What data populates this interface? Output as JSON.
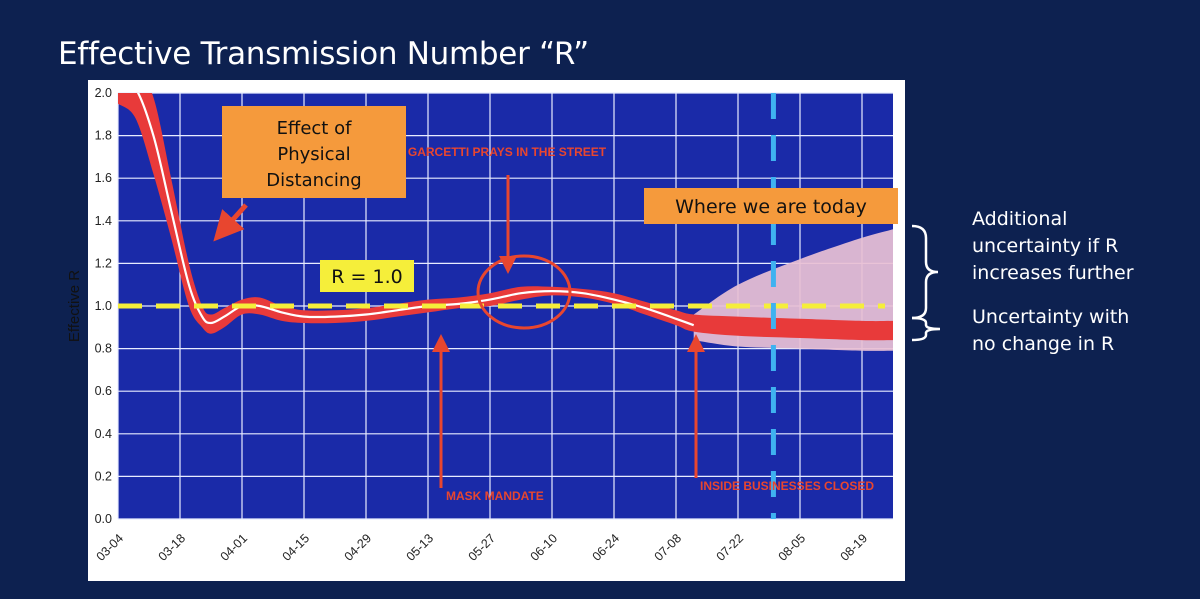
{
  "slide": {
    "title": "Effective Transmission Number “R”"
  },
  "colors": {
    "background": "#0d2150",
    "plot_background": "#1a2aa8",
    "grid": "#e8ecff",
    "band": "#e83a3a",
    "mean_line": "#ffffff",
    "reference_line": "#f5ee3a",
    "uncertainty_band": "#e8bfd4",
    "today_line": "#3fb2f0",
    "orange_box": "#f59a3c",
    "annotation_red": "#e8462f"
  },
  "chart_data": {
    "type": "line",
    "title": "",
    "xlabel": "",
    "ylabel": "Effective R",
    "x_ticks": [
      "03-04",
      "03-18",
      "04-01",
      "04-15",
      "04-29",
      "05-13",
      "05-27",
      "06-10",
      "06-24",
      "07-08",
      "07-22",
      "08-05",
      "08-19"
    ],
    "ylim": [
      0,
      2.0
    ],
    "y_ticks": [
      0.0,
      0.2,
      0.4,
      0.6,
      0.8,
      1.0,
      1.2,
      1.4,
      1.6,
      1.8,
      2.0
    ],
    "grid": true,
    "series": [
      {
        "kind": "mean",
        "x": [
          "03-04",
          "03-08",
          "03-12",
          "03-16",
          "03-20",
          "03-23",
          "03-25",
          "03-28",
          "04-01",
          "04-05",
          "04-10",
          "04-15",
          "04-22",
          "04-29",
          "05-06",
          "05-13",
          "05-20",
          "05-27",
          "06-03",
          "06-10",
          "06-17",
          "06-24",
          "07-01",
          "07-08",
          "07-12"
        ],
        "values": [
          2.05,
          2.02,
          1.8,
          1.45,
          1.1,
          0.95,
          0.92,
          0.95,
          1.0,
          1.0,
          0.97,
          0.95,
          0.95,
          0.96,
          0.98,
          1.0,
          1.01,
          1.03,
          1.06,
          1.07,
          1.06,
          1.03,
          0.99,
          0.94,
          0.91
        ]
      },
      {
        "kind": "confidence_band",
        "x": [
          "03-04",
          "03-08",
          "03-12",
          "03-16",
          "03-20",
          "03-23",
          "03-25",
          "03-28",
          "04-01",
          "04-05",
          "04-10",
          "04-15",
          "04-22",
          "04-29",
          "05-06",
          "05-13",
          "05-20",
          "05-27",
          "06-03",
          "06-10",
          "06-17",
          "06-24",
          "07-01",
          "07-08",
          "07-12",
          "07-22",
          "08-05",
          "08-19",
          "08-26"
        ],
        "upper": [
          2.15,
          2.12,
          1.98,
          1.6,
          1.2,
          1.0,
          0.96,
          0.99,
          1.03,
          1.04,
          1.0,
          0.98,
          0.98,
          0.99,
          1.01,
          1.03,
          1.04,
          1.06,
          1.09,
          1.09,
          1.08,
          1.06,
          1.02,
          0.98,
          0.96,
          0.95,
          0.94,
          0.93,
          0.93
        ],
        "lower": [
          1.95,
          1.88,
          1.62,
          1.32,
          1.0,
          0.9,
          0.87,
          0.9,
          0.96,
          0.96,
          0.93,
          0.92,
          0.92,
          0.93,
          0.95,
          0.97,
          0.99,
          1.0,
          1.03,
          1.05,
          1.04,
          1.01,
          0.96,
          0.91,
          0.88,
          0.86,
          0.85,
          0.84,
          0.84
        ]
      },
      {
        "kind": "additional_uncertainty",
        "x": [
          "07-12",
          "07-22",
          "08-05",
          "08-19",
          "08-26"
        ],
        "upper": [
          0.96,
          1.1,
          1.22,
          1.32,
          1.36
        ],
        "lower": [
          0.84,
          0.81,
          0.8,
          0.79,
          0.79
        ]
      }
    ],
    "reference_lines": [
      {
        "y": 1.0,
        "label": "R = 1.0"
      }
    ],
    "vertical_lines": [
      {
        "x": "07-30"
      }
    ],
    "annotations": [
      {
        "id": "physical",
        "text": "Effect of\nPhysical\nDistancing"
      },
      {
        "id": "today",
        "text": "Where we are today"
      },
      {
        "id": "garcetti",
        "text": "GARCETTI PRAYS IN THE STREET"
      },
      {
        "id": "mask",
        "text": "MASK MANDATE"
      },
      {
        "id": "businesses",
        "text": "INSIDE BUSINESSES CLOSED"
      }
    ]
  },
  "side_notes": {
    "additional": "Additional\nuncertainty if R\nincreases further",
    "no_change": "Uncertainty with\nno change in R"
  }
}
